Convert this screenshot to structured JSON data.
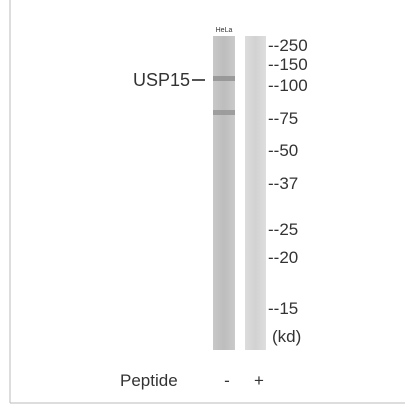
{
  "figure": {
    "lane_label": "HeLa",
    "protein_label": "USP15",
    "markers": [
      "--250",
      "--150",
      "--100",
      "--75",
      "--50",
      "--37",
      "--25",
      "--20",
      "--15",
      "(kd)"
    ],
    "peptide": {
      "label": "Peptide",
      "lanes": [
        "-",
        "+"
      ]
    }
  }
}
